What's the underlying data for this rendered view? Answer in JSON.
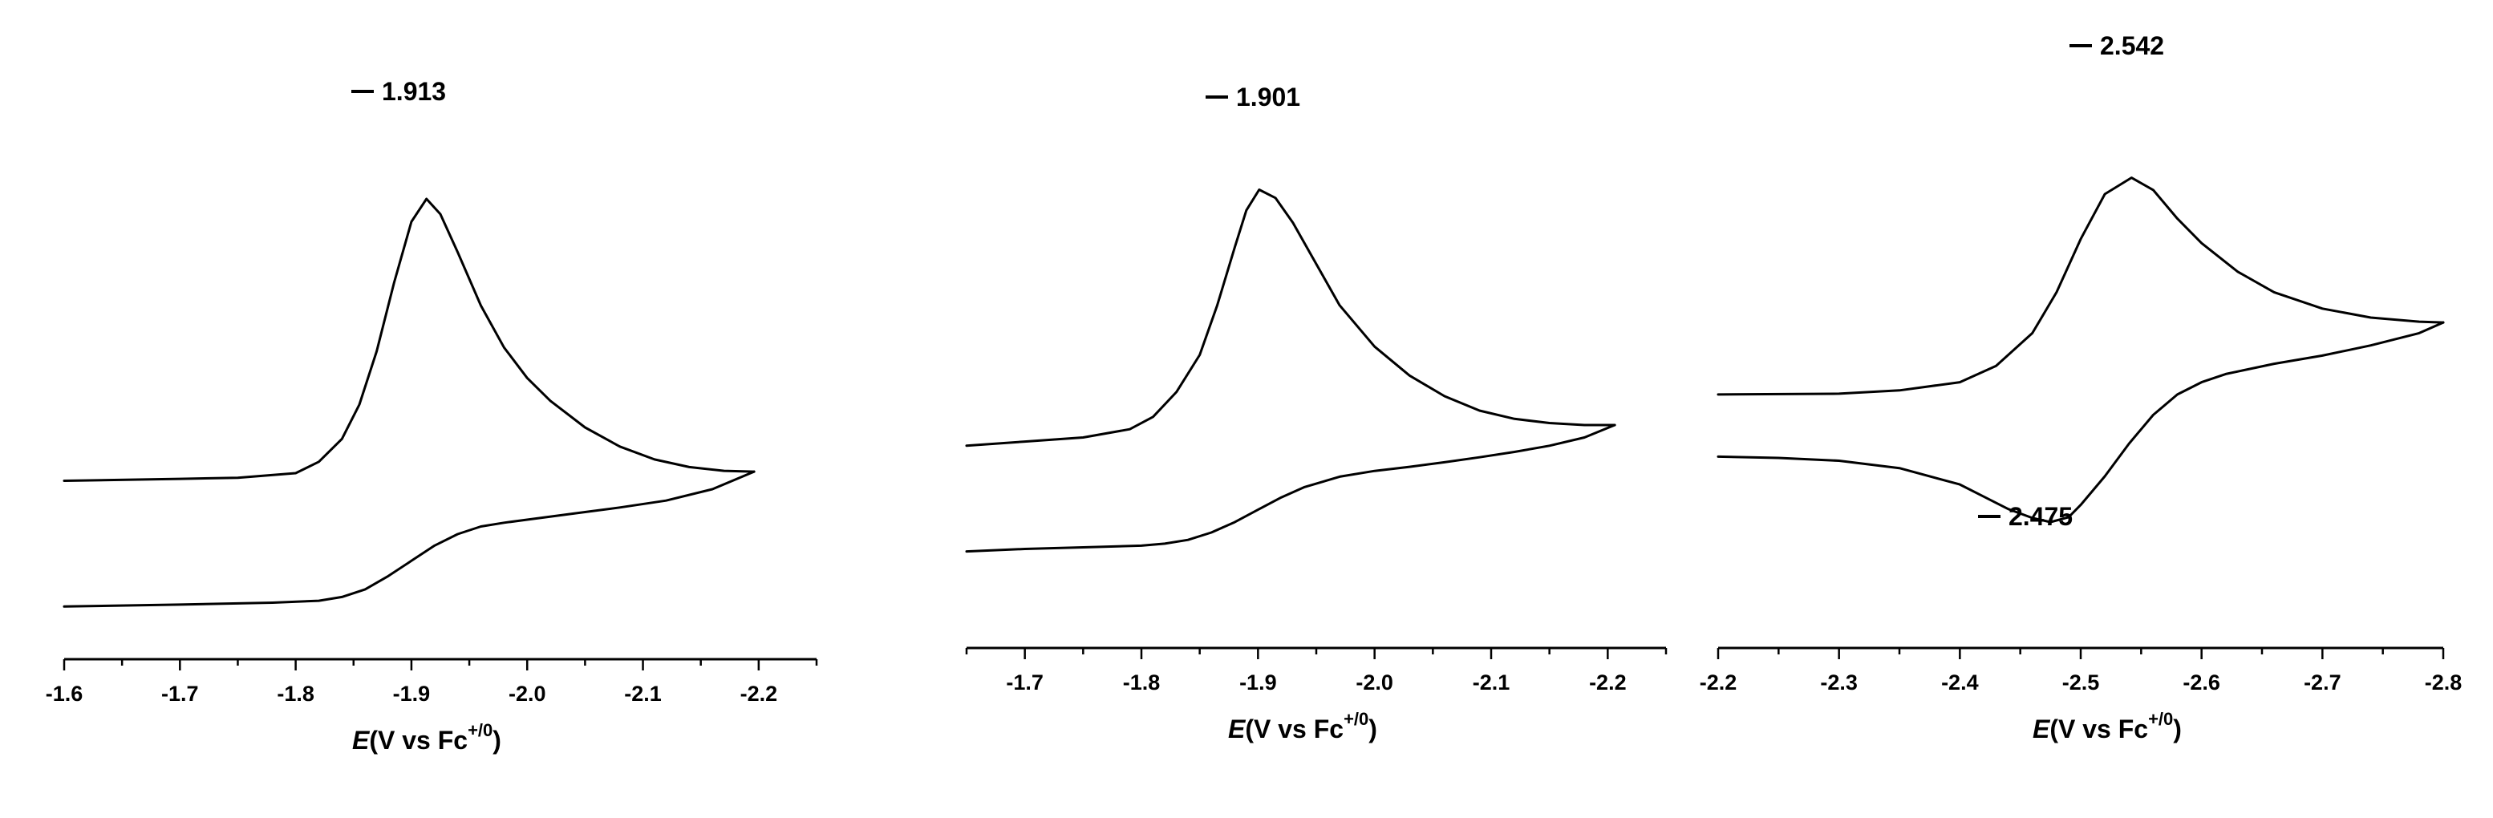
{
  "chart_data": [
    {
      "type": "line",
      "title": "",
      "xlabel": {
        "italic": "E",
        "rest": "(V vs Fc",
        "sup": "+/0",
        "close": ")"
      },
      "ylabel": "",
      "xlim": [
        -1.6,
        -2.25
      ],
      "x_ticks": [
        "-1.6",
        "-1.7",
        "-1.8",
        "-1.9",
        "-2.0",
        "-2.1",
        "-2.2"
      ],
      "annotations": [
        {
          "text": "1.913",
          "x": -1.913
        }
      ],
      "grid": false,
      "series": [
        {
          "x": [
            -1.6,
            -1.7,
            -1.75,
            -1.8,
            -1.82,
            -1.84,
            -1.855,
            -1.87,
            -1.885,
            -1.9,
            -1.913,
            -1.925,
            -1.94,
            -1.96,
            -1.98,
            -2.0,
            -2.02,
            -2.05,
            -2.08,
            -2.11,
            -2.14,
            -2.17,
            -2.196
          ],
          "y": [
            0.18,
            0.185,
            0.188,
            0.2,
            0.23,
            0.29,
            0.38,
            0.52,
            0.7,
            0.86,
            0.92,
            0.88,
            0.78,
            0.64,
            0.53,
            0.45,
            0.39,
            0.32,
            0.27,
            0.236,
            0.216,
            0.206,
            0.204
          ]
        },
        {
          "x": [
            -2.196,
            -2.16,
            -2.12,
            -2.08,
            -2.04,
            -2.0,
            -1.98,
            -1.96,
            -1.94,
            -1.92,
            -1.9,
            -1.88,
            -1.86,
            -1.84,
            -1.82,
            -1.78,
            -1.7,
            -1.6
          ],
          "y": [
            0.204,
            0.158,
            0.128,
            0.11,
            0.094,
            0.078,
            0.07,
            0.06,
            0.04,
            0.01,
            -0.03,
            -0.07,
            -0.105,
            -0.125,
            -0.135,
            -0.14,
            -0.145,
            -0.15
          ]
        }
      ]
    },
    {
      "type": "line",
      "title": "",
      "xlabel": {
        "italic": "E",
        "rest": "(V vs Fc",
        "sup": "+/0",
        "close": ")"
      },
      "ylabel": "",
      "xlim": [
        -1.65,
        -2.25
      ],
      "x_ticks": [
        "-1.7",
        "-1.8",
        "-1.9",
        "-2.0",
        "-2.1",
        "-2.2"
      ],
      "annotations": [
        {
          "text": "1.901",
          "x": -1.901
        }
      ],
      "grid": false,
      "series": [
        {
          "x": [
            -1.65,
            -1.7,
            -1.75,
            -1.79,
            -1.81,
            -1.83,
            -1.85,
            -1.865,
            -1.88,
            -1.89,
            -1.901,
            -1.915,
            -1.93,
            -1.95,
            -1.97,
            -2.0,
            -2.03,
            -2.06,
            -2.09,
            -2.12,
            -2.15,
            -2.18,
            -2.206
          ],
          "y": [
            0.28,
            0.29,
            0.3,
            0.32,
            0.35,
            0.41,
            0.5,
            0.62,
            0.76,
            0.85,
            0.9,
            0.88,
            0.82,
            0.72,
            0.62,
            0.52,
            0.45,
            0.4,
            0.365,
            0.345,
            0.335,
            0.33,
            0.33
          ]
        },
        {
          "x": [
            -2.206,
            -2.18,
            -2.15,
            -2.12,
            -2.09,
            -2.06,
            -2.03,
            -2.0,
            -1.97,
            -1.94,
            -1.92,
            -1.9,
            -1.88,
            -1.86,
            -1.84,
            -1.82,
            -1.8,
            -1.75,
            -1.7,
            -1.65
          ],
          "y": [
            0.33,
            0.3,
            0.28,
            0.265,
            0.252,
            0.24,
            0.229,
            0.219,
            0.205,
            0.18,
            0.155,
            0.125,
            0.095,
            0.07,
            0.052,
            0.043,
            0.038,
            0.034,
            0.03,
            0.024
          ]
        }
      ]
    },
    {
      "type": "line",
      "title": "",
      "xlabel": {
        "italic": "E",
        "rest": "(V vs Fc",
        "sup": "+/0",
        "close": ")"
      },
      "ylabel": "",
      "xlim": [
        -2.2,
        -2.8
      ],
      "x_ticks": [
        "-2.2",
        "-2.3",
        "-2.4",
        "-2.5",
        "-2.6",
        "-2.7",
        "-2.8"
      ],
      "annotations": [
        {
          "text": "2.542",
          "x": -2.542
        },
        {
          "text": "2.475",
          "x": -2.475
        }
      ],
      "grid": false,
      "series": [
        {
          "x": [
            -2.2,
            -2.3,
            -2.35,
            -2.4,
            -2.43,
            -2.46,
            -2.48,
            -2.5,
            -2.52,
            -2.542,
            -2.56,
            -2.58,
            -2.6,
            -2.63,
            -2.66,
            -2.7,
            -2.74,
            -2.78,
            -2.8
          ],
          "y": [
            0.31,
            0.312,
            0.32,
            0.34,
            0.38,
            0.46,
            0.56,
            0.69,
            0.8,
            0.84,
            0.81,
            0.74,
            0.68,
            0.61,
            0.56,
            0.52,
            0.498,
            0.488,
            0.486
          ]
        },
        {
          "x": [
            -2.8,
            -2.78,
            -2.74,
            -2.7,
            -2.66,
            -2.62,
            -2.6,
            -2.58,
            -2.56,
            -2.54,
            -2.52,
            -2.5,
            -2.49,
            -2.475,
            -2.46,
            -2.44,
            -2.42,
            -2.4,
            -2.35,
            -2.3,
            -2.25,
            -2.2
          ],
          "y": [
            0.486,
            0.46,
            0.43,
            0.405,
            0.385,
            0.36,
            0.34,
            0.31,
            0.26,
            0.19,
            0.11,
            0.04,
            0.01,
            -0.002,
            0.008,
            0.03,
            0.06,
            0.09,
            0.13,
            0.148,
            0.155,
            0.158
          ]
        }
      ]
    }
  ],
  "panels_layout_note": ""
}
